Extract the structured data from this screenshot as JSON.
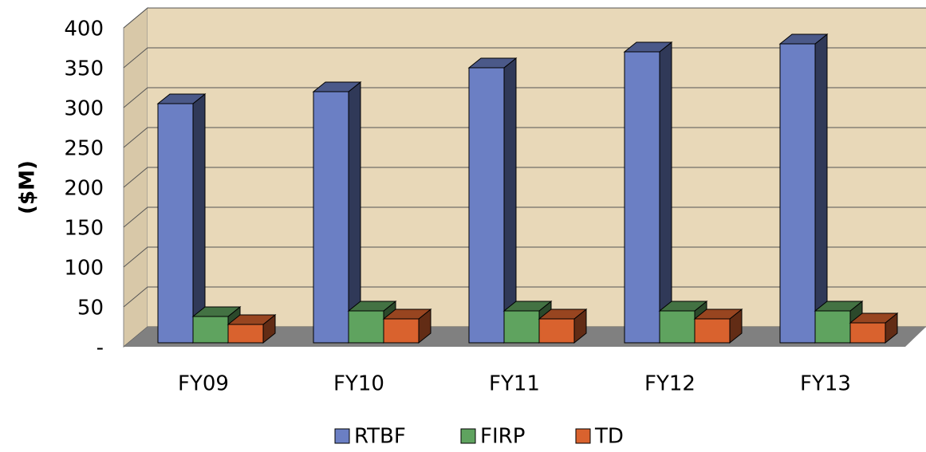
{
  "chart_data": {
    "type": "bar3d",
    "y_label": "($M)",
    "categories": [
      "FY09",
      "FY10",
      "FY11",
      "FY12",
      "FY13"
    ],
    "series": [
      {
        "name": "RTBF",
        "color": "#6b7fc4",
        "values": [
          300,
          315,
          345,
          365,
          375
        ]
      },
      {
        "name": "FIRP",
        "color": "#5fa35f",
        "values": [
          33,
          40,
          40,
          40,
          40
        ]
      },
      {
        "name": "TD",
        "color": "#d9622e",
        "values": [
          23,
          30,
          30,
          30,
          25
        ]
      }
    ],
    "ylim": [
      0,
      400
    ],
    "yticks": [
      {
        "value": 0,
        "label": "-"
      },
      50,
      100,
      150,
      200,
      250,
      300,
      350,
      400
    ],
    "grid": true,
    "legend": "bottom"
  }
}
